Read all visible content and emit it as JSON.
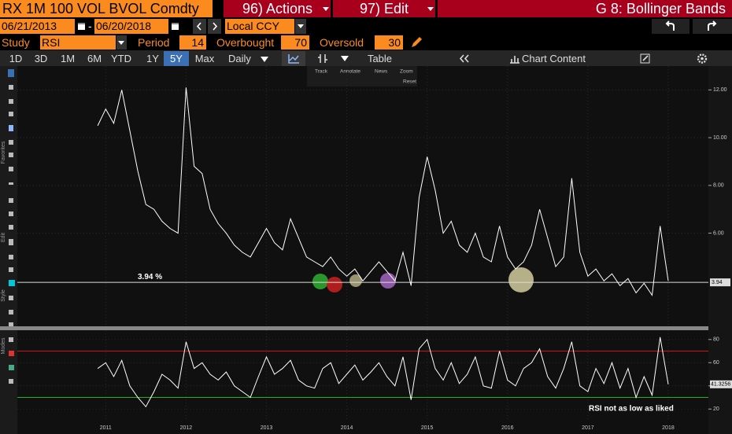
{
  "toolbar": {
    "ticker": "RX 1M 100 VOL BVOL Comdty",
    "actions": "96) Actions",
    "edit": "97) Edit",
    "function": "G 8: Bollinger Bands"
  },
  "dates": {
    "start": "06/21/2013",
    "separator": "-",
    "end": "06/20/2018",
    "currency": "Local CCY"
  },
  "study": {
    "label": "Study",
    "name": "RSI",
    "period_label": "Period",
    "period": 14,
    "overbought_label": "Overbought",
    "overbought": 70,
    "oversold_label": "Oversold",
    "oversold": 30
  },
  "tabs": [
    "1D",
    "3D",
    "1M",
    "6M",
    "YTD",
    "1Y",
    "5Y",
    "Max"
  ],
  "frequency": "Daily",
  "table": "Table",
  "chart_content": "Chart Content",
  "chart_tools": [
    "Track",
    "Annotate",
    "News",
    "Zoom"
  ],
  "reset": "Reset",
  "side_labels": [
    "Favorites",
    "Edit",
    "Style",
    "Modes"
  ],
  "chart_data": [
    {
      "type": "line",
      "color": "#ffffff",
      "grid": true,
      "x": [
        2010.9,
        2011.0,
        2011.1,
        2011.2,
        2011.3,
        2011.4,
        2011.5,
        2011.6,
        2011.7,
        2011.8,
        2011.9,
        2012.0,
        2012.1,
        2012.2,
        2012.3,
        2012.4,
        2012.5,
        2012.6,
        2012.7,
        2012.8,
        2012.9,
        2013.0,
        2013.1,
        2013.2,
        2013.3,
        2013.4,
        2013.5,
        2013.6,
        2013.7,
        2013.8,
        2013.9,
        2014.0,
        2014.1,
        2014.2,
        2014.3,
        2014.4,
        2014.5,
        2014.6,
        2014.7,
        2014.8,
        2014.9,
        2015.0,
        2015.1,
        2015.2,
        2015.3,
        2015.4,
        2015.5,
        2015.6,
        2015.7,
        2015.8,
        2015.9,
        2016.0,
        2016.1,
        2016.2,
        2016.3,
        2016.4,
        2016.5,
        2016.6,
        2016.7,
        2016.8,
        2016.9,
        2017.0,
        2017.1,
        2017.2,
        2017.3,
        2017.4,
        2017.5,
        2017.6,
        2017.7,
        2017.8,
        2017.9,
        2018.0
      ],
      "values": [
        10.5,
        11.2,
        10.6,
        12.0,
        10.3,
        8.6,
        7.2,
        7.0,
        6.5,
        6.2,
        6.0,
        12.1,
        8.8,
        8.5,
        7.0,
        6.4,
        6.0,
        5.5,
        5.2,
        5.0,
        5.6,
        6.2,
        5.6,
        5.3,
        6.6,
        5.8,
        5.0,
        4.8,
        4.6,
        5.0,
        4.5,
        4.2,
        4.5,
        4.0,
        4.4,
        4.8,
        4.4,
        4.0,
        5.2,
        3.8,
        7.5,
        9.2,
        7.8,
        6.0,
        6.5,
        5.5,
        5.2,
        6.0,
        5.0,
        4.8,
        6.3,
        5.0,
        4.5,
        4.8,
        5.5,
        7.0,
        5.8,
        4.6,
        5.0,
        8.3,
        5.2,
        4.2,
        4.5,
        4.0,
        4.3,
        3.8,
        4.1,
        3.5,
        3.9,
        3.4,
        6.3,
        4.0
      ],
      "xlim": [
        2009.9,
        2018.5
      ],
      "xticks": [
        2011,
        2012,
        2013,
        2014,
        2015,
        2016,
        2017,
        2018
      ],
      "ylim": [
        2.1,
        13.0
      ],
      "yticks": [
        {
          "value": 6,
          "label": "6.00"
        },
        {
          "value": 8,
          "label": "8.00"
        },
        {
          "value": 10,
          "label": "10.00"
        },
        {
          "value": 12,
          "label": "12.00"
        }
      ],
      "reference": {
        "value": 3.94,
        "label": "3.94 %",
        "axis_label": "3.94"
      }
    },
    {
      "type": "line",
      "color": "#ffffff",
      "x": [
        2010.9,
        2011.0,
        2011.1,
        2011.2,
        2011.3,
        2011.4,
        2011.5,
        2011.6,
        2011.7,
        2011.8,
        2011.9,
        2012.0,
        2012.1,
        2012.2,
        2012.3,
        2012.4,
        2012.5,
        2012.6,
        2012.7,
        2012.8,
        2012.9,
        2013.0,
        2013.1,
        2013.2,
        2013.3,
        2013.4,
        2013.5,
        2013.6,
        2013.7,
        2013.8,
        2013.9,
        2014.0,
        2014.1,
        2014.2,
        2014.3,
        2014.4,
        2014.5,
        2014.6,
        2014.7,
        2014.8,
        2014.9,
        2015.0,
        2015.1,
        2015.2,
        2015.3,
        2015.4,
        2015.5,
        2015.6,
        2015.7,
        2015.8,
        2015.9,
        2016.0,
        2016.1,
        2016.2,
        2016.3,
        2016.4,
        2016.5,
        2016.6,
        2016.7,
        2016.8,
        2016.9,
        2017.0,
        2017.1,
        2017.2,
        2017.3,
        2017.4,
        2017.5,
        2017.6,
        2017.7,
        2017.8,
        2017.9,
        2018.0
      ],
      "values": [
        55,
        60,
        48,
        62,
        40,
        30,
        22,
        35,
        50,
        45,
        38,
        78,
        55,
        60,
        50,
        45,
        52,
        40,
        35,
        30,
        48,
        65,
        50,
        55,
        62,
        45,
        40,
        38,
        55,
        60,
        42,
        50,
        58,
        45,
        52,
        60,
        48,
        40,
        65,
        28,
        72,
        80,
        55,
        45,
        60,
        42,
        50,
        65,
        40,
        38,
        70,
        45,
        40,
        55,
        60,
        72,
        48,
        38,
        55,
        78,
        40,
        35,
        55,
        42,
        60,
        38,
        55,
        30,
        48,
        32,
        82,
        41.3256
      ],
      "xlim": [
        2009.9,
        2018.5
      ],
      "ylim": [
        10,
        88
      ],
      "yticks": [
        20,
        40,
        60,
        80
      ],
      "annotation": "RSI not as low as liked"
    }
  ]
}
